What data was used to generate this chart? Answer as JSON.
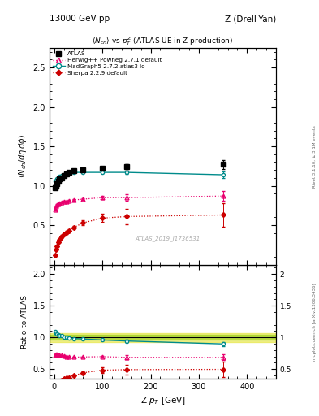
{
  "title_top_left": "13000 GeV pp",
  "title_top_right": "Z (Drell-Yan)",
  "plot_title": "$\\langle N_{ch}\\rangle$ vs $p_T^Z$ (ATLAS UE in Z production)",
  "right_label_top": "Rivet 3.1.10, ≥ 3.1M events",
  "right_label_bottom": "mcplots.cern.ch [arXiv:1306.3436]",
  "watermark": "ATLAS_2019_I1736531",
  "ylabel_main": "$\\langle N_{ch}/d\\eta\\, d\\phi\\rangle$",
  "ylabel_ratio": "Ratio to ATLAS",
  "xlabel": "Z $p_T$ [GeV]",
  "ylim_main": [
    0.0,
    2.75
  ],
  "ylim_ratio": [
    0.35,
    2.15
  ],
  "yticks_main": [
    0.5,
    1.0,
    1.5,
    2.0,
    2.5
  ],
  "yticks_ratio": [
    0.5,
    1.0,
    1.5,
    2.0
  ],
  "xlim": [
    -10,
    460
  ],
  "xticks": [
    0,
    100,
    200,
    300,
    400
  ],
  "atlas_x": [
    2,
    4,
    6,
    8,
    10,
    15,
    20,
    25,
    30,
    40,
    60,
    100,
    150,
    350
  ],
  "atlas_y": [
    0.975,
    1.0,
    1.03,
    1.06,
    1.09,
    1.1,
    1.13,
    1.15,
    1.17,
    1.19,
    1.2,
    1.22,
    1.24,
    1.27
  ],
  "atlas_yerr": [
    0.02,
    0.02,
    0.02,
    0.02,
    0.02,
    0.02,
    0.02,
    0.02,
    0.02,
    0.02,
    0.02,
    0.02,
    0.03,
    0.06
  ],
  "herwig_x": [
    2,
    4,
    6,
    8,
    10,
    15,
    20,
    25,
    30,
    40,
    60,
    100,
    150,
    350
  ],
  "herwig_y": [
    0.7,
    0.74,
    0.76,
    0.77,
    0.78,
    0.79,
    0.8,
    0.8,
    0.81,
    0.82,
    0.83,
    0.85,
    0.85,
    0.87
  ],
  "herwig_yerr": [
    0.01,
    0.01,
    0.01,
    0.01,
    0.01,
    0.01,
    0.01,
    0.01,
    0.01,
    0.01,
    0.01,
    0.02,
    0.04,
    0.06
  ],
  "madgraph_x": [
    2,
    4,
    6,
    8,
    10,
    15,
    20,
    25,
    30,
    40,
    60,
    100,
    150,
    350
  ],
  "madgraph_y": [
    1.06,
    1.07,
    1.09,
    1.1,
    1.12,
    1.13,
    1.14,
    1.15,
    1.16,
    1.17,
    1.17,
    1.17,
    1.17,
    1.14
  ],
  "madgraph_yerr": [
    0.01,
    0.01,
    0.01,
    0.01,
    0.01,
    0.01,
    0.01,
    0.01,
    0.01,
    0.01,
    0.01,
    0.01,
    0.02,
    0.04
  ],
  "sherpa_x": [
    2,
    4,
    6,
    8,
    10,
    15,
    20,
    25,
    30,
    40,
    60,
    100,
    150,
    350
  ],
  "sherpa_y": [
    0.12,
    0.19,
    0.23,
    0.28,
    0.32,
    0.36,
    0.39,
    0.41,
    0.43,
    0.47,
    0.53,
    0.59,
    0.61,
    0.63
  ],
  "sherpa_yerr": [
    0.01,
    0.01,
    0.01,
    0.01,
    0.02,
    0.02,
    0.02,
    0.02,
    0.02,
    0.02,
    0.03,
    0.05,
    0.1,
    0.15
  ],
  "atlas_color": "#000000",
  "herwig_color": "#e8006e",
  "madgraph_color": "#008b8b",
  "sherpa_color": "#cc0000"
}
